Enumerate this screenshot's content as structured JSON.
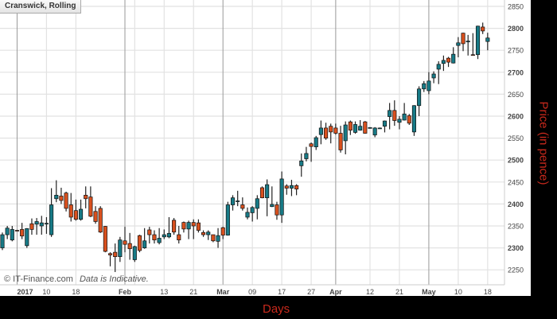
{
  "header": {
    "title": "Cranswick, Rolling"
  },
  "credit": {
    "site": "© IT-Finance.com",
    "note": "Data is Indicative."
  },
  "colors": {
    "up": "#177a86",
    "down": "#d9501e",
    "axis_title": "#c8291c",
    "grid": "#e2e2e2",
    "month_grid": "#9a9a9a"
  },
  "chart_data": {
    "type": "candlestick",
    "title": "Cranswick, Rolling",
    "xlabel": "Days",
    "ylabel": "Price (in pence)",
    "ylim": [
      2225,
      2860
    ],
    "grid": true,
    "y_ticks": [
      2250,
      2300,
      2350,
      2400,
      2450,
      2500,
      2550,
      2600,
      2650,
      2700,
      2750,
      2800,
      2850
    ],
    "x_ticks": [
      {
        "label": "2017",
        "index": 3,
        "major": true
      },
      {
        "label": "10",
        "index": 9,
        "major": false
      },
      {
        "label": "18",
        "index": 15,
        "major": false
      },
      {
        "label": "Feb",
        "index": 25,
        "major": true
      },
      {
        "label": "",
        "index": 27,
        "major": false
      },
      {
        "label": "13",
        "index": 33,
        "major": false
      },
      {
        "label": "21",
        "index": 39,
        "major": false
      },
      {
        "label": "Mar",
        "index": 45,
        "major": true
      },
      {
        "label": "09",
        "index": 51,
        "major": false
      },
      {
        "label": "17",
        "index": 57,
        "major": false
      },
      {
        "label": "27",
        "index": 63,
        "major": false
      },
      {
        "label": "Apr",
        "index": 68,
        "major": true
      },
      {
        "label": "12",
        "index": 75,
        "major": false
      },
      {
        "label": "21",
        "index": 81,
        "major": false
      },
      {
        "label": "May",
        "index": 87,
        "major": true
      },
      {
        "label": "10",
        "index": 93,
        "major": false
      },
      {
        "label": "18",
        "index": 99,
        "major": false
      }
    ],
    "ohlc": [
      [
        2300,
        2335,
        2295,
        2330
      ],
      [
        2330,
        2350,
        2320,
        2345
      ],
      [
        2318,
        2350,
        2315,
        2342
      ],
      [
        2340,
        2341,
        2338,
        2339
      ],
      [
        2342,
        2357,
        2320,
        2327
      ],
      [
        2305,
        2345,
        2300,
        2344
      ],
      [
        2355,
        2367,
        2330,
        2342
      ],
      [
        2354,
        2368,
        2330,
        2360
      ],
      [
        2350,
        2373,
        2330,
        2357
      ],
      [
        2355,
        2370,
        2332,
        2356
      ],
      [
        2330,
        2436,
        2325,
        2398
      ],
      [
        2412,
        2454,
        2404,
        2420
      ],
      [
        2418,
        2437,
        2400,
        2408
      ],
      [
        2425,
        2428,
        2383,
        2390
      ],
      [
        2398,
        2425,
        2360,
        2370
      ],
      [
        2385,
        2410,
        2362,
        2365
      ],
      [
        2365,
        2410,
        2362,
        2388
      ],
      [
        2420,
        2440,
        2390,
        2412
      ],
      [
        2416,
        2440,
        2370,
        2372
      ],
      [
        2383,
        2395,
        2355,
        2360
      ],
      [
        2390,
        2395,
        2334,
        2336
      ],
      [
        2349,
        2350,
        2290,
        2292
      ],
      [
        2287,
        2290,
        2258,
        2284
      ],
      [
        2290,
        2310,
        2245,
        2280
      ],
      [
        2280,
        2325,
        2268,
        2318
      ],
      [
        2316,
        2348,
        2290,
        2308
      ],
      [
        2310,
        2334,
        2273,
        2298
      ],
      [
        2273,
        2305,
        2268,
        2303
      ],
      [
        2328,
        2330,
        2290,
        2294
      ],
      [
        2300,
        2345,
        2298,
        2316
      ],
      [
        2341,
        2348,
        2310,
        2330
      ],
      [
        2330,
        2340,
        2310,
        2318
      ],
      [
        2312,
        2345,
        2308,
        2322
      ],
      [
        2325,
        2342,
        2320,
        2330
      ],
      [
        2325,
        2370,
        2322,
        2333
      ],
      [
        2363,
        2368,
        2330,
        2336
      ],
      [
        2330,
        2350,
        2310,
        2318
      ],
      [
        2358,
        2360,
        2335,
        2343
      ],
      [
        2343,
        2362,
        2320,
        2358
      ],
      [
        2358,
        2365,
        2320,
        2350
      ],
      [
        2357,
        2365,
        2335,
        2340
      ],
      [
        2335,
        2340,
        2325,
        2330
      ],
      [
        2330,
        2340,
        2318,
        2336
      ],
      [
        2330,
        2330,
        2313,
        2316
      ],
      [
        2315,
        2345,
        2300,
        2328
      ],
      [
        2346,
        2348,
        2320,
        2329
      ],
      [
        2329,
        2405,
        2328,
        2398
      ],
      [
        2398,
        2420,
        2385,
        2414
      ],
      [
        2406,
        2430,
        2395,
        2407
      ],
      [
        2398,
        2415,
        2385,
        2390
      ],
      [
        2370,
        2392,
        2365,
        2381
      ],
      [
        2380,
        2395,
        2360,
        2392
      ],
      [
        2390,
        2420,
        2365,
        2412
      ],
      [
        2437,
        2440,
        2413,
        2414
      ],
      [
        2414,
        2456,
        2372,
        2444
      ],
      [
        2394,
        2440,
        2393,
        2399
      ],
      [
        2398,
        2405,
        2364,
        2375
      ],
      [
        2375,
        2474,
        2357,
        2457
      ],
      [
        2441,
        2445,
        2421,
        2436
      ],
      [
        2436,
        2455,
        2418,
        2442
      ],
      [
        2442,
        2445,
        2420,
        2434
      ],
      [
        2487,
        2515,
        2462,
        2498
      ],
      [
        2503,
        2530,
        2497,
        2515
      ],
      [
        2537,
        2540,
        2496,
        2531
      ],
      [
        2530,
        2555,
        2523,
        2551
      ],
      [
        2558,
        2590,
        2536,
        2573
      ],
      [
        2573,
        2585,
        2546,
        2550
      ],
      [
        2577,
        2583,
        2538,
        2564
      ],
      [
        2573,
        2583,
        2558,
        2561
      ],
      [
        2561,
        2578,
        2517,
        2523
      ],
      [
        2544,
        2588,
        2513,
        2580
      ],
      [
        2587,
        2590,
        2557,
        2568
      ],
      [
        2563,
        2588,
        2560,
        2581
      ],
      [
        2568,
        2591,
        2567,
        2577
      ],
      [
        2587,
        2589,
        2560,
        2561
      ],
      [
        2573,
        2575,
        2572,
        2574
      ],
      [
        2557,
        2575,
        2552,
        2573
      ],
      [
        2573,
        2574,
        2572,
        2573
      ],
      [
        2577,
        2590,
        2563,
        2589
      ],
      [
        2599,
        2630,
        2570,
        2613
      ],
      [
        2613,
        2636,
        2578,
        2590
      ],
      [
        2586,
        2600,
        2570,
        2593
      ],
      [
        2591,
        2630,
        2590,
        2605
      ],
      [
        2601,
        2605,
        2580,
        2584
      ],
      [
        2564,
        2625,
        2555,
        2624
      ],
      [
        2624,
        2668,
        2600,
        2662
      ],
      [
        2662,
        2680,
        2655,
        2674
      ],
      [
        2658,
        2700,
        2650,
        2680
      ],
      [
        2687,
        2702,
        2675,
        2696
      ],
      [
        2707,
        2725,
        2673,
        2718
      ],
      [
        2720,
        2738,
        2703,
        2727
      ],
      [
        2732,
        2735,
        2712,
        2723
      ],
      [
        2721,
        2757,
        2720,
        2741
      ],
      [
        2761,
        2780,
        2734,
        2767
      ],
      [
        2789,
        2790,
        2748,
        2765
      ],
      [
        2769,
        2785,
        2738,
        2771
      ],
      [
        2740,
        2789,
        2739,
        2739
      ],
      [
        2740,
        2806,
        2730,
        2805
      ],
      [
        2803,
        2813,
        2787,
        2794
      ],
      [
        2770,
        2790,
        2750,
        2778
      ]
    ]
  }
}
